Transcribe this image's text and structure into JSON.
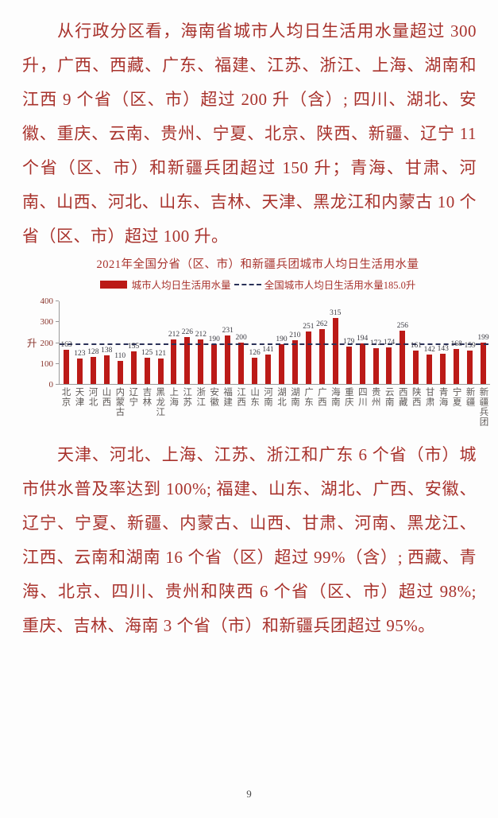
{
  "page": {
    "number": "9"
  },
  "paragraphs": {
    "p1": "从行政分区看，海南省城市人均日生活用水量超过 300 升，广西、西藏、广东、福建、江苏、浙江、上海、湖南和江西 9 个省（区、市）超过 200 升（含）; 四川、湖北、安徽、重庆、云南、贵州、宁夏、北京、陕西、新疆、辽宁 11 个省（区、市）和新疆兵团超过 150 升；青海、甘肃、河南、山西、河北、山东、吉林、天津、黑龙江和内蒙古 10 个省（区、市）超过 100 升。",
    "p2": "天津、河北、上海、江苏、浙江和广东 6 个省（市）城市供水普及率达到 100%; 福建、山东、湖北、广西、安徽、辽宁、宁夏、新疆、内蒙古、山西、甘肃、河南、黑龙江、江西、云南和湖南 16 个省（区）超过 99%（含）; 西藏、青海、北京、四川、贵州和陕西 6 个省（区、市）超过 98%; 重庆、吉林、海南 3 个省（市）和新疆兵团超过 95%。"
  },
  "chart_data": {
    "type": "bar",
    "title": "2021年全国分省（区、市）和新疆兵团城市人均日生活用水量",
    "ylabel": "升",
    "xlabel": "",
    "ylim": [
      0,
      400
    ],
    "yticks": [
      0,
      100,
      200,
      300,
      400
    ],
    "grid": false,
    "legend_position": "top",
    "legend": {
      "bars": "城市人均日生活用水量",
      "line": "全国城市人均日生活用水量185.0升"
    },
    "reference_line": {
      "value": 185.0,
      "label": "全国城市人均日生活用水量185.0升"
    },
    "categories": [
      "北京",
      "天津",
      "河北",
      "山西",
      "内蒙古",
      "辽宁",
      "吉林",
      "黑龙江",
      "上海",
      "江苏",
      "浙江",
      "安徽",
      "福建",
      "江西",
      "山东",
      "河南",
      "湖北",
      "湖南",
      "广东",
      "广西",
      "海南",
      "重庆",
      "四川",
      "贵州",
      "云南",
      "西藏",
      "陕西",
      "甘肃",
      "青海",
      "宁夏",
      "新疆",
      "新疆兵团"
    ],
    "values": [
      163,
      123,
      128,
      138,
      110,
      155,
      125,
      121,
      212,
      226,
      212,
      190,
      231,
      200,
      126,
      141,
      190,
      210,
      251,
      262,
      315,
      179,
      194,
      172,
      174,
      256,
      161,
      142,
      143,
      168,
      159,
      199
    ],
    "colors": {
      "bar": "#bb1a17",
      "dashed_line": "#2a3158",
      "body_text": "#a8322c"
    }
  }
}
